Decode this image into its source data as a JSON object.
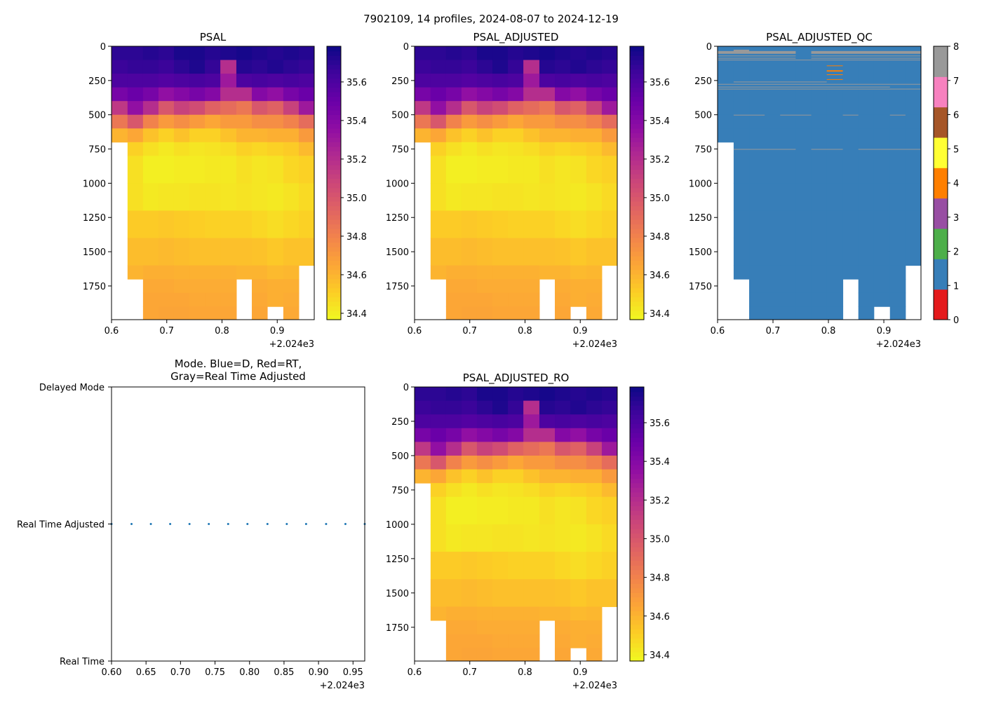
{
  "figure_title": "7902109, 14 profiles, 2024-08-07 to 2024-12-19",
  "chart_data": {
    "type": "heatmap",
    "profile_x": [
      0.6,
      0.629,
      0.657,
      0.685,
      0.713,
      0.741,
      0.769,
      0.797,
      0.826,
      0.854,
      0.882,
      0.911,
      0.939,
      0.967
    ],
    "x_offset_label": "+2.024e3",
    "xlim": [
      0.6,
      0.967
    ],
    "ylim": [
      1996,
      0
    ],
    "depth_edges": [
      0,
      100,
      200,
      300,
      400,
      500,
      600,
      700,
      800,
      1000,
      1200,
      1400,
      1600,
      1700,
      1800,
      1900,
      1996
    ],
    "depth_ticks": [
      "0",
      "250",
      "500",
      "750",
      "1000",
      "1250",
      "1500",
      "1750"
    ],
    "depth_tick_values": [
      0,
      250,
      500,
      750,
      1000,
      1250,
      1500,
      1750
    ],
    "x_ticks": [
      "0.6",
      "0.7",
      "0.8",
      "0.9"
    ],
    "x_tick_values": [
      0.6,
      0.7,
      0.8,
      0.9
    ],
    "salinity_range": [
      34.367,
      35.785
    ],
    "colorbar_ticks": [
      "34.4",
      "34.6",
      "34.8",
      "35.0",
      "35.2",
      "35.4",
      "35.6"
    ],
    "colorbar_tick_values": [
      34.4,
      34.6,
      34.8,
      35.0,
      35.2,
      35.4,
      35.6
    ],
    "colormap": "plasma_r",
    "salinity": [
      [
        35.7,
        35.66,
        35.6,
        35.45,
        35.15,
        34.85,
        34.6,
        null,
        null,
        null,
        null,
        null,
        null,
        null,
        null,
        null
      ],
      [
        35.7,
        35.68,
        35.6,
        35.5,
        35.35,
        35.0,
        34.65,
        34.5,
        34.45,
        34.45,
        34.52,
        34.57,
        34.6,
        null,
        null,
        null
      ],
      [
        35.72,
        35.68,
        35.6,
        35.45,
        35.2,
        34.8,
        34.55,
        34.45,
        34.4,
        34.42,
        34.52,
        34.57,
        34.62,
        34.64,
        34.65,
        34.65
      ],
      [
        35.7,
        35.66,
        35.58,
        35.35,
        35.0,
        34.7,
        34.5,
        34.42,
        34.4,
        34.43,
        34.53,
        34.58,
        34.62,
        34.64,
        34.65,
        34.66
      ],
      [
        35.75,
        35.7,
        35.6,
        35.4,
        35.1,
        34.75,
        34.55,
        34.45,
        34.41,
        34.43,
        34.52,
        34.57,
        34.61,
        34.63,
        34.65,
        34.66
      ],
      [
        35.75,
        35.74,
        35.62,
        35.45,
        35.05,
        34.7,
        34.5,
        34.43,
        34.41,
        34.44,
        34.51,
        34.56,
        34.61,
        34.63,
        34.64,
        34.65
      ],
      [
        35.72,
        35.68,
        35.6,
        35.4,
        34.95,
        34.65,
        34.5,
        34.44,
        34.42,
        34.44,
        34.5,
        34.56,
        34.61,
        34.63,
        34.64,
        34.65
      ],
      [
        35.74,
        35.2,
        35.3,
        35.2,
        34.9,
        34.7,
        34.55,
        34.46,
        34.42,
        34.43,
        34.5,
        34.56,
        34.61,
        34.63,
        34.64,
        34.65
      ],
      [
        35.76,
        35.72,
        35.6,
        35.2,
        34.85,
        34.7,
        34.6,
        34.5,
        34.45,
        34.44,
        34.5,
        34.56,
        34.6,
        null,
        null,
        null
      ],
      [
        35.74,
        35.7,
        35.62,
        35.4,
        35.0,
        34.75,
        34.6,
        34.48,
        34.43,
        34.43,
        34.48,
        34.55,
        34.6,
        34.63,
        34.64,
        34.65
      ],
      [
        35.72,
        35.73,
        35.6,
        35.35,
        34.95,
        34.75,
        34.62,
        34.5,
        34.44,
        34.42,
        34.46,
        34.53,
        34.58,
        34.62,
        34.62,
        null
      ],
      [
        35.74,
        35.7,
        35.62,
        35.45,
        35.1,
        34.8,
        34.62,
        34.52,
        34.48,
        34.44,
        34.48,
        34.55,
        34.59,
        34.62,
        34.63,
        34.64
      ],
      [
        35.72,
        35.68,
        35.6,
        35.5,
        35.3,
        34.9,
        34.7,
        34.58,
        34.5,
        34.47,
        34.5,
        34.55,
        null,
        null,
        null,
        null
      ]
    ],
    "qc": {
      "title": "PSAL_ADJUSTED_QC",
      "base_flag": 1,
      "flag_colors": [
        "#e41a1c",
        "#377eb8",
        "#4daf4a",
        "#984ea3",
        "#ff7f00",
        "#ffff33",
        "#a65628",
        "#f781bf",
        "#999999"
      ],
      "colorbar_ticks": [
        "0",
        "1",
        "2",
        "3",
        "4",
        "5",
        "6",
        "7",
        "8"
      ],
      "segments": [
        {
          "cols": [
            0,
            4
          ],
          "depth": [
            35,
            55
          ],
          "flag": 8
        },
        {
          "cols": [
            1,
            1
          ],
          "depth": [
            25,
            40
          ],
          "flag": 8
        },
        {
          "cols": [
            6,
            12
          ],
          "depth": [
            35,
            55
          ],
          "flag": 8
        },
        {
          "cols": [
            0,
            4
          ],
          "depth": [
            68,
            72
          ],
          "flag": 8
        },
        {
          "cols": [
            0,
            4
          ],
          "depth": [
            85,
            89
          ],
          "flag": 8
        },
        {
          "cols": [
            6,
            12
          ],
          "depth": [
            68,
            72
          ],
          "flag": 8
        },
        {
          "cols": [
            6,
            12
          ],
          "depth": [
            85,
            89
          ],
          "flag": 8
        },
        {
          "cols": [
            0,
            12
          ],
          "depth": [
            98,
            101
          ],
          "flag": 8
        },
        {
          "cols": [
            7,
            7
          ],
          "depth": [
            140,
            145
          ],
          "flag": 4
        },
        {
          "cols": [
            7,
            7
          ],
          "depth": [
            175,
            185
          ],
          "flag": 4
        },
        {
          "cols": [
            7,
            7
          ],
          "depth": [
            205,
            210
          ],
          "flag": 4
        },
        {
          "cols": [
            7,
            7
          ],
          "depth": [
            240,
            245
          ],
          "flag": 4
        },
        {
          "cols": [
            1,
            6
          ],
          "depth": [
            258,
            262
          ],
          "flag": 8
        },
        {
          "cols": [
            0,
            12
          ],
          "depth": [
            275,
            279
          ],
          "flag": 8
        },
        {
          "cols": [
            0,
            10
          ],
          "depth": [
            295,
            299
          ],
          "flag": 8
        },
        {
          "cols": [
            0,
            12
          ],
          "depth": [
            310,
            313
          ],
          "flag": 8
        },
        {
          "cols": [
            1,
            2
          ],
          "depth": [
            500,
            503
          ],
          "flag": 8
        },
        {
          "cols": [
            4,
            5
          ],
          "depth": [
            500,
            503
          ],
          "flag": 8
        },
        {
          "cols": [
            8,
            8
          ],
          "depth": [
            500,
            503
          ],
          "flag": 8
        },
        {
          "cols": [
            11,
            11
          ],
          "depth": [
            500,
            503
          ],
          "flag": 8
        },
        {
          "cols": [
            1,
            4
          ],
          "depth": [
            750,
            753
          ],
          "flag": 8
        },
        {
          "cols": [
            6,
            7
          ],
          "depth": [
            750,
            753
          ],
          "flag": 8
        },
        {
          "cols": [
            9,
            12
          ],
          "depth": [
            750,
            753
          ],
          "flag": 8
        }
      ]
    },
    "mode": {
      "title_line1": "Mode. Blue=D, Red=RT,",
      "title_line2": "Gray=Real Time Adjusted",
      "y_labels": [
        "Real Time",
        "Real Time Adjusted",
        "Delayed Mode"
      ],
      "x_ticks": [
        "0.60",
        "0.65",
        "0.70",
        "0.75",
        "0.80",
        "0.85",
        "0.90",
        "0.95"
      ],
      "x_tick_values": [
        0.6,
        0.65,
        0.7,
        0.75,
        0.8,
        0.85,
        0.9,
        0.95
      ],
      "xlim": [
        0.6,
        0.967
      ],
      "values": [
        1,
        1,
        1,
        1,
        1,
        1,
        1,
        1,
        1,
        1,
        1,
        1,
        1,
        1
      ],
      "point_color": "#1f77b4"
    }
  },
  "panels": {
    "psal": {
      "title": "PSAL"
    },
    "psal_adjusted": {
      "title": "PSAL_ADJUSTED"
    },
    "psal_adjusted_ro": {
      "title": "PSAL_ADJUSTED_RO"
    }
  }
}
